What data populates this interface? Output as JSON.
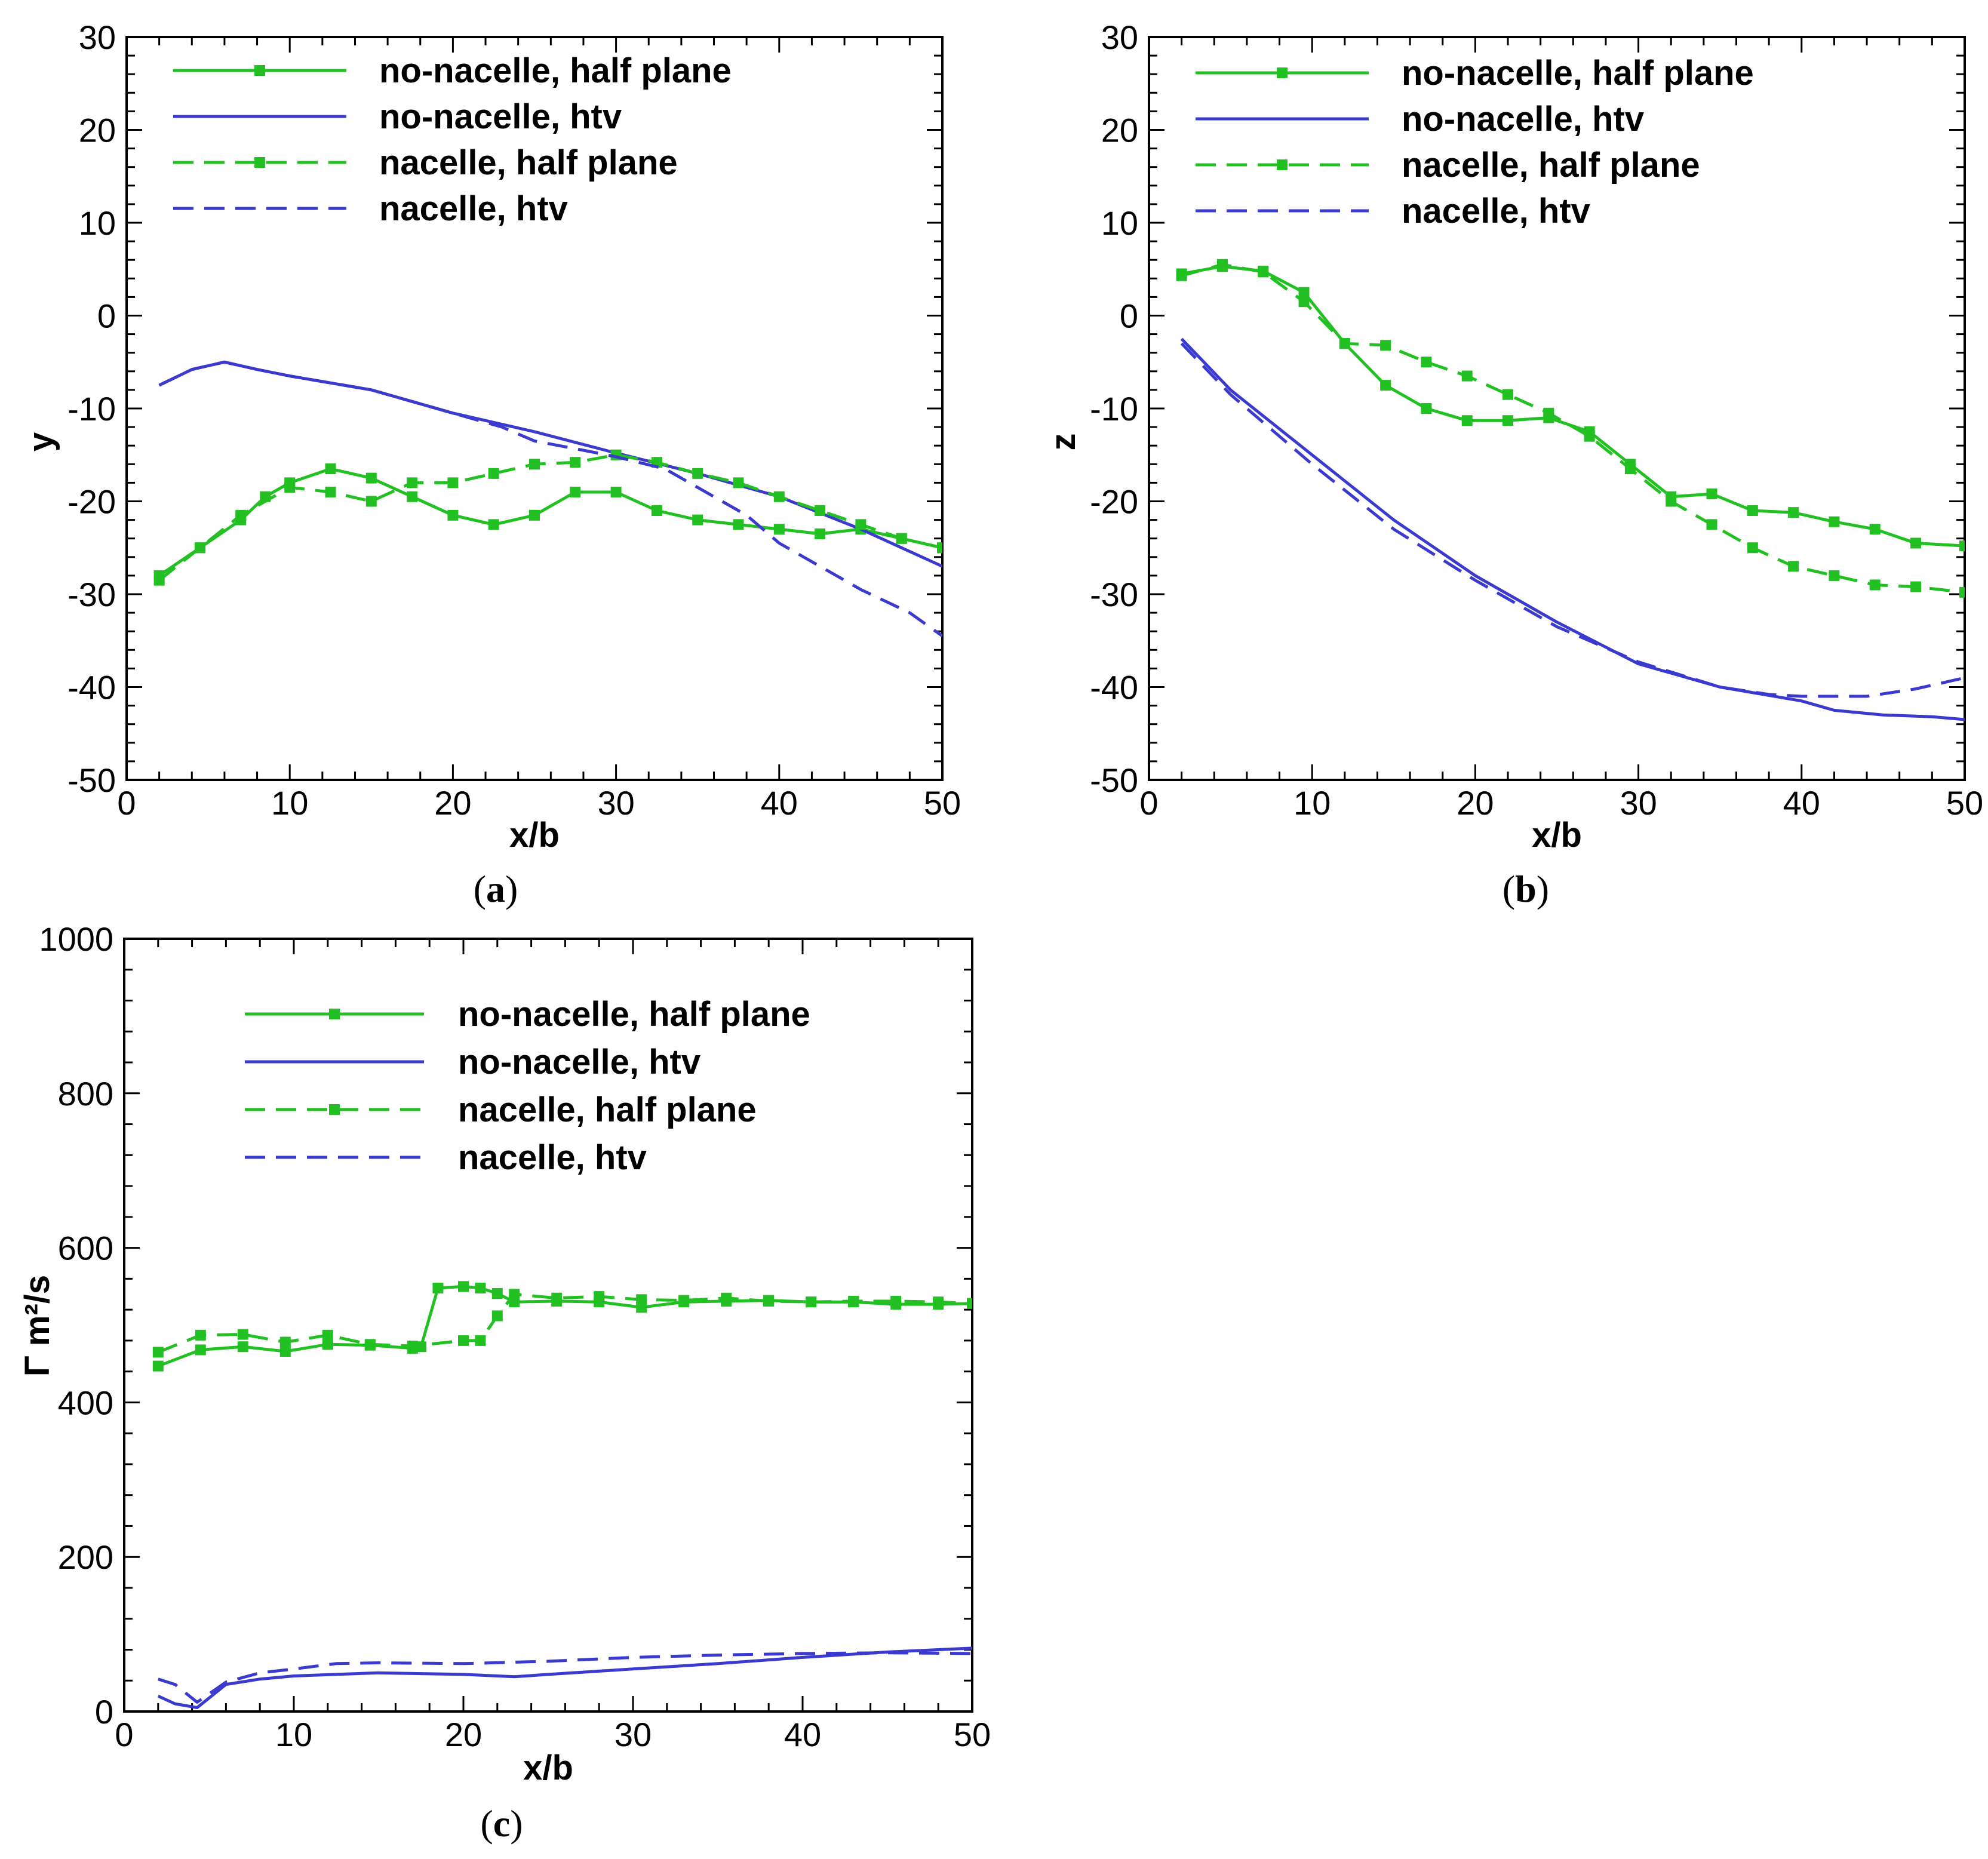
{
  "series_styles": {
    "nonac_half": {
      "color": "#22c022",
      "dash": "",
      "marker": "square"
    },
    "nonac_htv": {
      "color": "#3a3acf",
      "dash": "",
      "marker": "none"
    },
    "nac_half": {
      "color": "#22c022",
      "dash": "dashed",
      "marker": "square"
    },
    "nac_htv": {
      "color": "#3a3acf",
      "dash": "dashed",
      "marker": "none"
    }
  },
  "chart_data": [
    {
      "id": "a",
      "type": "line",
      "caption_letter": "a",
      "xlabel": "x/b",
      "ylabel": "y",
      "xlim": [
        0,
        50
      ],
      "ylim": [
        -50,
        30
      ],
      "xticks": [
        "0",
        "10",
        "20",
        "30",
        "40",
        "50"
      ],
      "xtick_values": [
        0,
        10,
        20,
        30,
        40,
        50
      ],
      "yticks": [
        "30",
        "20",
        "10",
        "0",
        "-10",
        "-20",
        "-30",
        "-40",
        "-50"
      ],
      "ytick_values": [
        30,
        20,
        10,
        0,
        -10,
        -20,
        -30,
        -40,
        -50
      ],
      "grid": false,
      "legend_position": "top-left",
      "series": [
        {
          "key": "nonac_half",
          "name": "no-nacelle, half plane",
          "x": [
            2,
            4.5,
            7,
            8.5,
            10,
            12.5,
            15,
            17.5,
            20,
            22.5,
            25,
            27.5,
            30,
            32.5,
            35,
            37.5,
            40,
            42.5,
            45,
            47.5,
            50
          ],
          "y": [
            -28,
            -25,
            -22,
            -19.5,
            -18,
            -16.5,
            -17.5,
            -19.5,
            -21.5,
            -22.5,
            -21.5,
            -19,
            -19,
            -21,
            -22,
            -22.5,
            -23,
            -23.5,
            -23,
            -24,
            -25
          ]
        },
        {
          "key": "nonac_htv",
          "name": "no-nacelle, htv",
          "x": [
            2,
            4,
            6,
            8,
            10,
            15,
            20,
            25,
            30,
            35,
            40,
            45,
            50
          ],
          "y": [
            -7.5,
            -5.8,
            -5,
            -5.8,
            -6.5,
            -8,
            -10.5,
            -12.5,
            -14.8,
            -17,
            -19.5,
            -23,
            -27
          ]
        },
        {
          "key": "nac_half",
          "name": "nacelle, half plane",
          "x": [
            2,
            4.5,
            7,
            10,
            12.5,
            15,
            17.5,
            20,
            22.5,
            25,
            27.5,
            30,
            32.5,
            35,
            37.5,
            40,
            42.5,
            45,
            47.5,
            50
          ],
          "y": [
            -28.5,
            -25,
            -21.5,
            -18.5,
            -19,
            -20,
            -18,
            -18,
            -17,
            -16,
            -15.8,
            -15,
            -15.8,
            -17,
            -18,
            -19.5,
            -21,
            -22.5,
            -24,
            -25
          ]
        },
        {
          "key": "nac_htv",
          "name": "nacelle, htv",
          "x": [
            2,
            4,
            6,
            8,
            10,
            15,
            20,
            23,
            25,
            28,
            30,
            33,
            35,
            38,
            40,
            43,
            45,
            48,
            50
          ],
          "y": [
            -7.5,
            -5.8,
            -5,
            -5.8,
            -6.5,
            -8,
            -10.5,
            -12,
            -13.5,
            -14.5,
            -15.2,
            -16.5,
            -18.5,
            -21.5,
            -24.5,
            -27.5,
            -29.5,
            -32,
            -34.5
          ]
        }
      ]
    },
    {
      "id": "b",
      "type": "line",
      "caption_letter": "b",
      "xlabel": "x/b",
      "ylabel": "z",
      "xlim": [
        0,
        50
      ],
      "ylim": [
        -50,
        30
      ],
      "xticks": [
        "0",
        "10",
        "20",
        "30",
        "40",
        "50"
      ],
      "xtick_values": [
        0,
        10,
        20,
        30,
        40,
        50
      ],
      "yticks": [
        "30",
        "20",
        "10",
        "0",
        "-10",
        "-20",
        "-30",
        "-40",
        "-50"
      ],
      "ytick_values": [
        30,
        20,
        10,
        0,
        -10,
        -20,
        -30,
        -40,
        -50
      ],
      "grid": false,
      "legend_position": "top-left",
      "series": [
        {
          "key": "nonac_half",
          "name": "no-nacelle, half plane",
          "x": [
            2,
            4.5,
            7,
            9.5,
            12,
            14.5,
            17,
            19.5,
            22,
            24.5,
            27,
            29.5,
            32,
            34.5,
            37,
            39.5,
            42,
            44.5,
            47,
            50
          ],
          "y": [
            4.5,
            5.3,
            4.8,
            2.5,
            -3,
            -7.5,
            -10,
            -11.3,
            -11.3,
            -11,
            -12.5,
            -16,
            -19.5,
            -19.2,
            -21,
            -21.2,
            -22.2,
            -23,
            -24.5,
            -24.8
          ]
        },
        {
          "key": "nonac_htv",
          "name": "no-nacelle, htv",
          "x": [
            2,
            5,
            10,
            15,
            20,
            25,
            30,
            35,
            40,
            42,
            45,
            48,
            50
          ],
          "y": [
            -2.5,
            -8,
            -15,
            -22,
            -28,
            -33,
            -37.5,
            -40,
            -41.5,
            -42.5,
            -43,
            -43.2,
            -43.5
          ]
        },
        {
          "key": "nac_half",
          "name": "nacelle, half plane",
          "x": [
            2,
            4.5,
            7,
            9.5,
            12,
            14.5,
            17,
            19.5,
            22,
            24.5,
            27,
            29.5,
            32,
            34.5,
            37,
            39.5,
            42,
            44.5,
            47,
            50
          ],
          "y": [
            4.3,
            5.5,
            4.7,
            1.5,
            -3,
            -3.2,
            -5,
            -6.5,
            -8.5,
            -10.5,
            -13,
            -16.5,
            -20,
            -22.5,
            -25,
            -27,
            -28,
            -29,
            -29.2,
            -29.8
          ]
        },
        {
          "key": "nac_htv",
          "name": "nacelle, htv",
          "x": [
            2,
            5,
            10,
            15,
            20,
            25,
            30,
            35,
            38,
            40,
            44,
            47,
            50
          ],
          "y": [
            -3,
            -8.5,
            -16,
            -23,
            -28.5,
            -33.5,
            -37.3,
            -40,
            -40.8,
            -41,
            -41,
            -40.2,
            -39
          ]
        }
      ]
    },
    {
      "id": "c",
      "type": "line",
      "caption_letter": "c",
      "xlabel": "x/b",
      "ylabel": "Γ m²/s",
      "xlim": [
        0,
        50
      ],
      "ylim": [
        0,
        1000
      ],
      "xticks": [
        "0",
        "10",
        "20",
        "30",
        "40",
        "50"
      ],
      "xtick_values": [
        0,
        10,
        20,
        30,
        40,
        50
      ],
      "yticks": [
        "1000",
        "800",
        "600",
        "400",
        "200",
        "0"
      ],
      "ytick_values": [
        1000,
        800,
        600,
        400,
        200,
        0
      ],
      "grid": false,
      "legend_position": "top-center",
      "series": [
        {
          "key": "nonac_half",
          "name": "no-nacelle, half plane",
          "x": [
            2,
            4.5,
            7,
            9.5,
            12,
            14.5,
            17,
            17.5,
            18.5,
            20,
            21,
            22,
            23,
            25.5,
            28,
            30.5,
            33,
            35.5,
            38,
            40.5,
            43,
            45.5,
            48,
            50
          ],
          "y": [
            447,
            468,
            472,
            466,
            475,
            474,
            470,
            472,
            548,
            550,
            548,
            541,
            530,
            531,
            530,
            523,
            530,
            531,
            532,
            530,
            530,
            527,
            527,
            528
          ]
        },
        {
          "key": "nonac_htv",
          "name": "no-nacelle, htv",
          "x": [
            2,
            3,
            4.3,
            6,
            8,
            10,
            15,
            20,
            23,
            25,
            30,
            35,
            40,
            45,
            48,
            50
          ],
          "y": [
            20,
            10,
            5,
            35,
            42,
            46,
            50,
            48,
            45,
            48,
            55,
            62,
            70,
            77,
            80,
            82
          ]
        },
        {
          "key": "nac_half",
          "name": "nacelle, half plane",
          "x": [
            2,
            4.5,
            7,
            9.5,
            12,
            14.5,
            17,
            20,
            21,
            22,
            23,
            25.5,
            28,
            30.5,
            33,
            35.5,
            38,
            40.5,
            43,
            45.5,
            48,
            50
          ],
          "y": [
            465,
            487,
            488,
            478,
            487,
            475,
            473,
            480,
            480,
            512,
            540,
            535,
            537,
            533,
            532,
            535,
            531,
            530,
            531,
            531,
            530,
            528
          ]
        },
        {
          "key": "nac_htv",
          "name": "nacelle, htv",
          "x": [
            2,
            3,
            4.3,
            6,
            8,
            10,
            12.5,
            15,
            20,
            25,
            30,
            35,
            40,
            45,
            50
          ],
          "y": [
            42,
            35,
            12,
            38,
            50,
            55,
            62,
            63,
            62,
            65,
            70,
            73,
            75,
            76,
            75
          ]
        }
      ]
    }
  ]
}
